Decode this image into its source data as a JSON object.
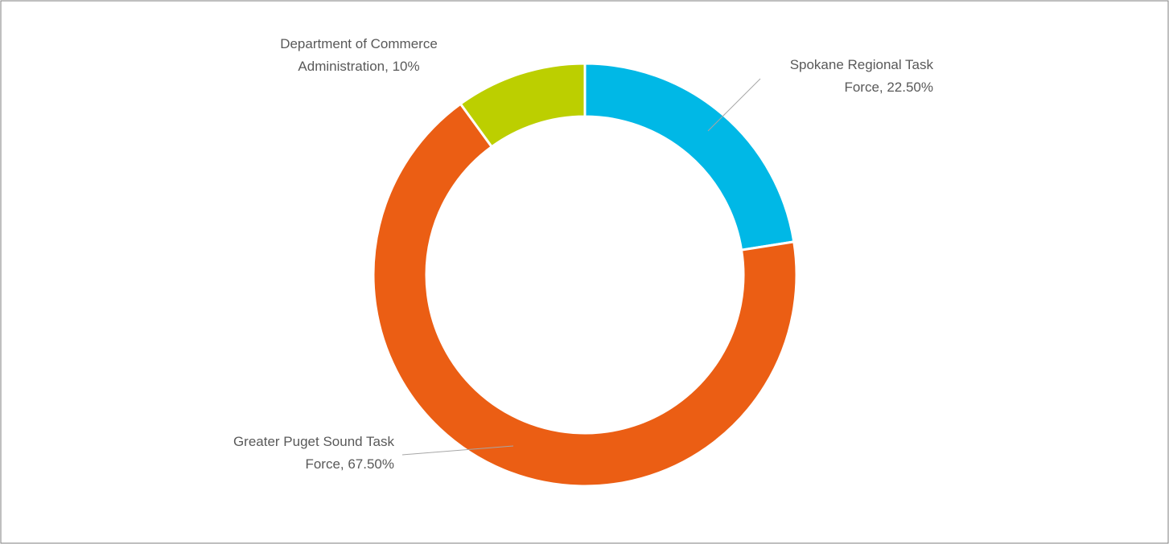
{
  "chart_data": {
    "type": "donut",
    "values": [
      22.5,
      67.5,
      10
    ],
    "value_labels": [
      "Spokane Regional Task Force, 22.50%",
      "Greater Puget Sound Task Force, 67.50%",
      "Department of Commerce Administration, 10%"
    ],
    "colors": [
      "#00b8e6",
      "#eb5e14",
      "#bccf00"
    ]
  }
}
